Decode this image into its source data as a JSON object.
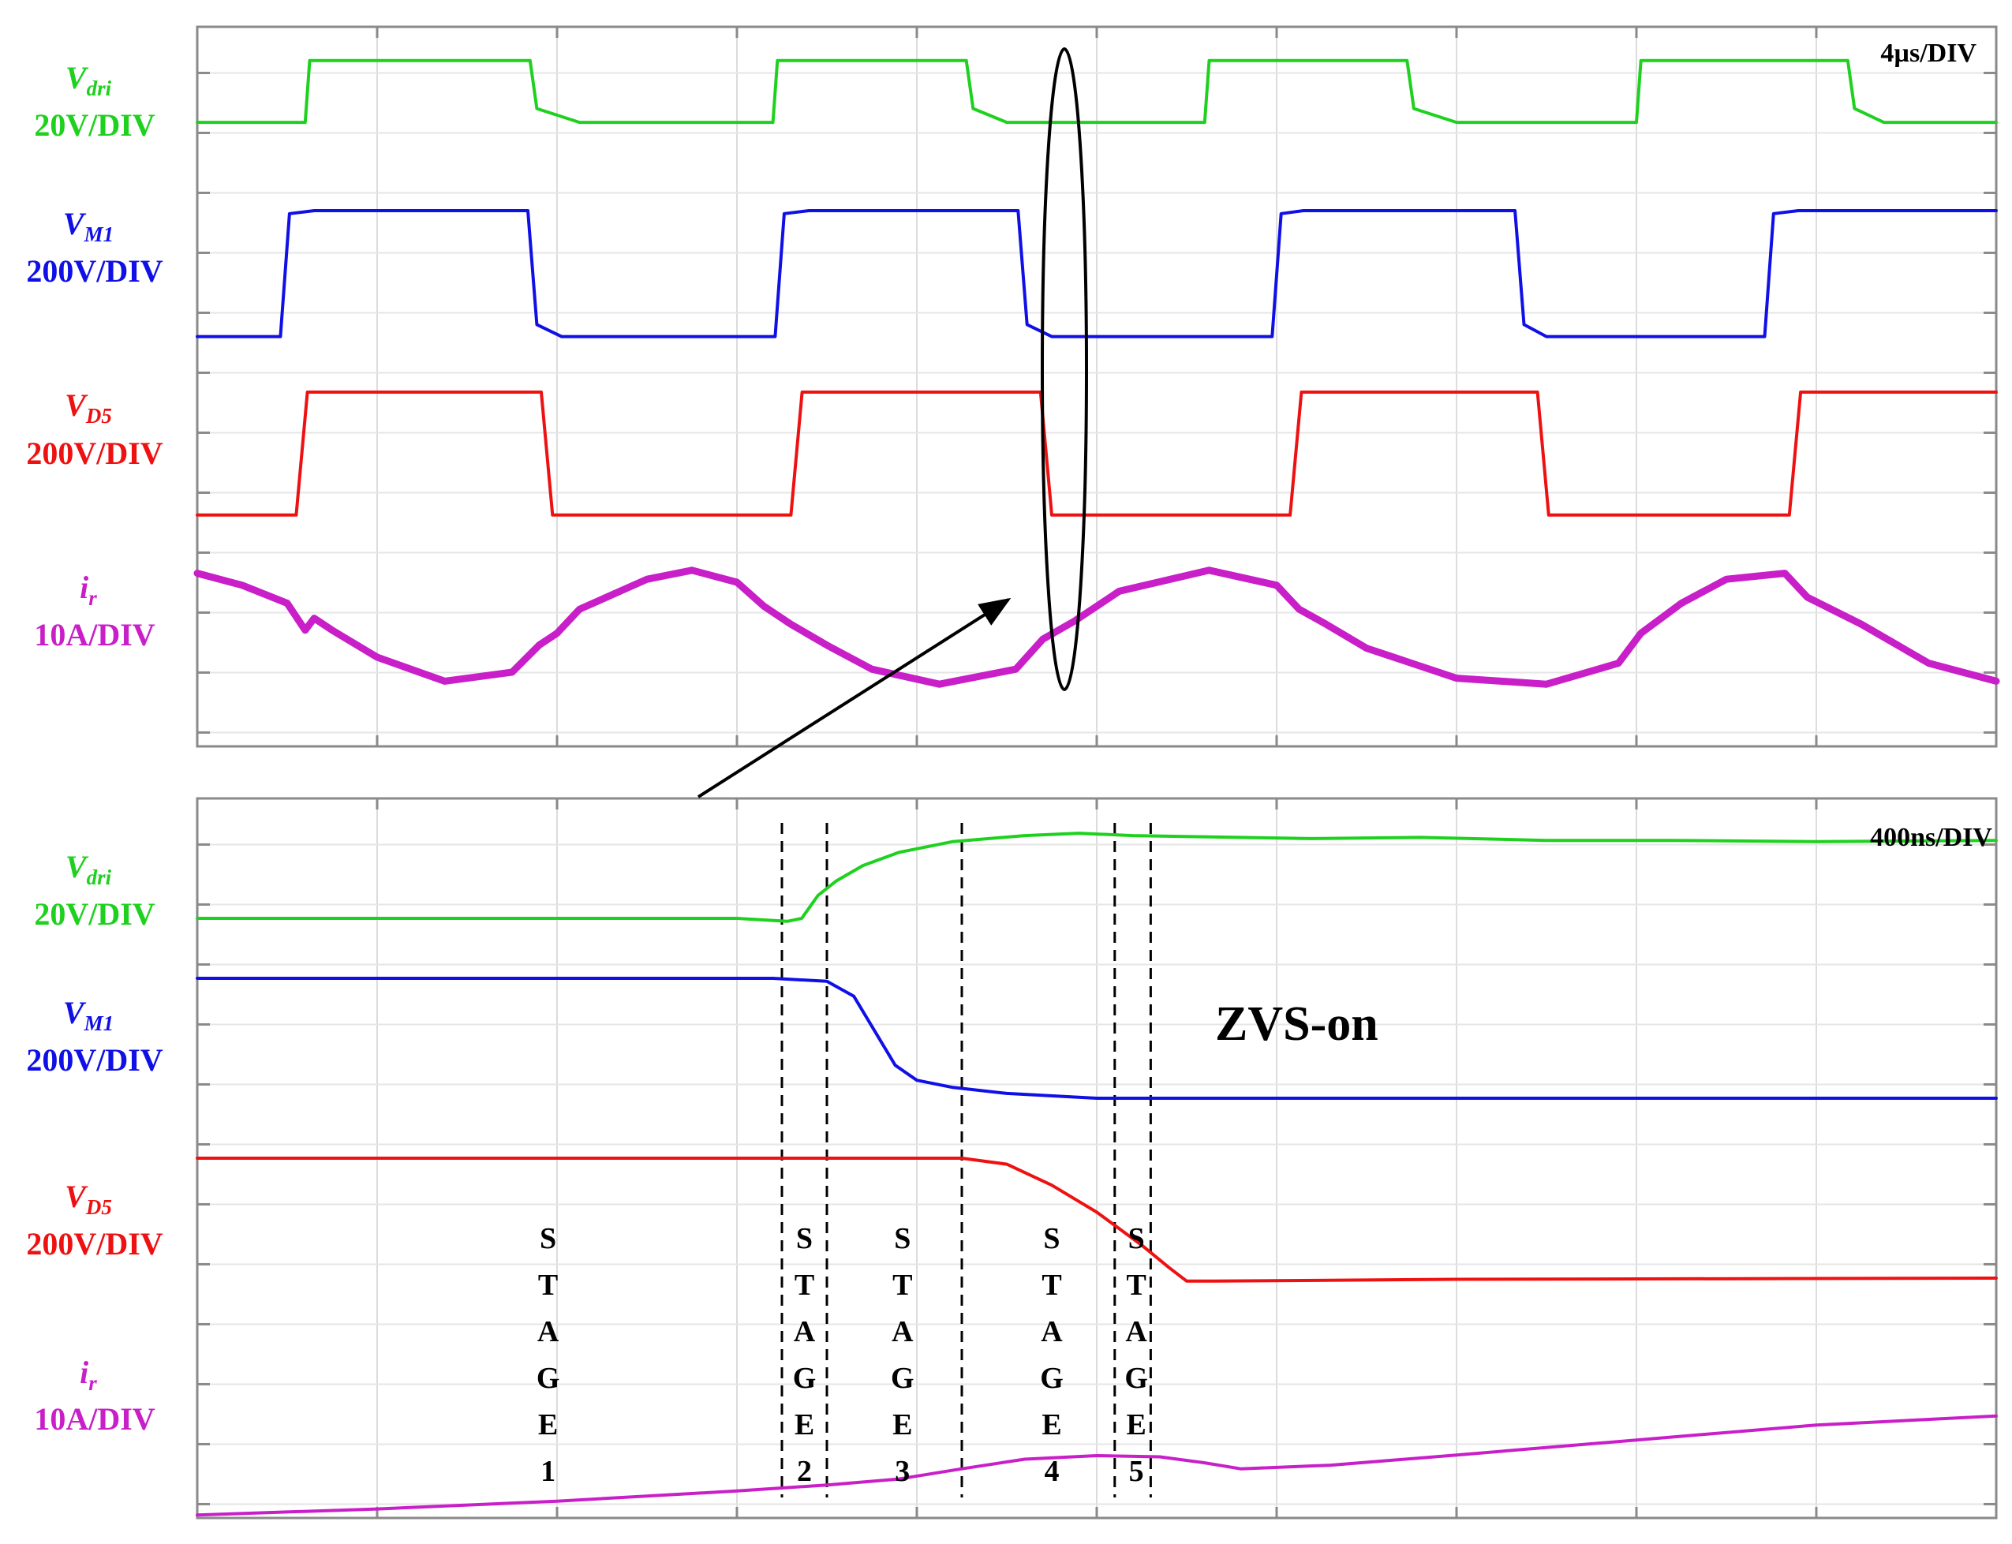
{
  "chart_data": [
    {
      "type": "line",
      "title": "",
      "time_scale": "4µs/DIV",
      "x_divisions": 10,
      "x_unit": "µs",
      "series": [
        {
          "name_main": "V",
          "name_sub": "dri",
          "scale": "20V/DIV",
          "color": "#1fd11f",
          "x": [
            0,
            2.4,
            2.5,
            7.4,
            7.55,
            8.5,
            12.8,
            12.9,
            17.1,
            17.25,
            18.0,
            22.4,
            22.5,
            26.9,
            27.05,
            28.0,
            32.0,
            32.1,
            36.7,
            36.85,
            37.5,
            40
          ],
          "y": [
            0.42,
            0.42,
            1.45,
            1.45,
            0.65,
            0.42,
            0.42,
            1.45,
            1.45,
            0.65,
            0.42,
            0.42,
            1.45,
            1.45,
            0.65,
            0.42,
            0.42,
            1.45,
            1.45,
            0.65,
            0.42,
            0.42
          ]
        },
        {
          "name_main": "V",
          "name_sub": "M1",
          "scale": "200V/DIV",
          "color": "#1010e6",
          "x": [
            0,
            1.85,
            2.05,
            2.6,
            7.35,
            7.55,
            8.1,
            12.85,
            13.05,
            13.6,
            18.25,
            18.45,
            19.0,
            23.9,
            24.1,
            24.6,
            29.3,
            29.5,
            30.0,
            34.85,
            35.05,
            35.6,
            40
          ],
          "y": [
            -0.1,
            -0.1,
            1.95,
            2.0,
            2.0,
            0.1,
            -0.1,
            -0.1,
            1.95,
            2.0,
            2.0,
            0.1,
            -0.1,
            -0.1,
            1.95,
            2.0,
            2.0,
            0.1,
            -0.1,
            -0.1,
            1.95,
            2.0,
            2.0
          ]
        },
        {
          "name_main": "V",
          "name_sub": "D5",
          "scale": "200V/DIV",
          "color": "#ee1111",
          "x": [
            0,
            2.2,
            2.45,
            7.65,
            7.9,
            13.2,
            13.45,
            18.75,
            19.0,
            24.3,
            24.55,
            29.8,
            30.05,
            35.4,
            35.65,
            40
          ],
          "y": [
            -0.05,
            -0.05,
            2.0,
            2.0,
            -0.05,
            -0.05,
            2.0,
            2.0,
            -0.05,
            -0.05,
            2.0,
            2.0,
            -0.05,
            -0.05,
            2.0,
            2.0
          ]
        },
        {
          "name_main": "i",
          "name_sub": "r",
          "scale": "10A/DIV",
          "color": "#c81fc8",
          "x": [
            0,
            1,
            2,
            2.4,
            2.6,
            3,
            4,
            5.5,
            7,
            7.6,
            8,
            8.5,
            10,
            11,
            12,
            12.6,
            13.2,
            14,
            15,
            16.5,
            18.2,
            18.8,
            19.5,
            20.5,
            22.5,
            24,
            24.5,
            25.1,
            26,
            28,
            30,
            31.6,
            32.1,
            33,
            34,
            35.3,
            35.8,
            37,
            38.5,
            40
          ],
          "y": [
            0.9,
            0.7,
            0.4,
            -0.05,
            0.15,
            -0.05,
            -0.5,
            -0.9,
            -0.75,
            -0.3,
            -0.1,
            0.3,
            0.8,
            0.95,
            0.75,
            0.35,
            0.05,
            -0.3,
            -0.7,
            -0.95,
            -0.7,
            -0.2,
            0.1,
            0.6,
            0.95,
            0.7,
            0.3,
            0.05,
            -0.35,
            -0.85,
            -0.95,
            -0.6,
            -0.1,
            0.4,
            0.8,
            0.9,
            0.5,
            0.05,
            -0.6,
            -0.9
          ]
        }
      ]
    },
    {
      "type": "line",
      "title": "",
      "time_scale": "400ns/DIV",
      "x_divisions": 10,
      "x_unit": "ns",
      "series": [
        {
          "name_main": "V",
          "name_sub": "dri",
          "scale": "20V/DIV",
          "color": "#1fd11f",
          "x": [
            0,
            3000,
            3280,
            3360,
            3450,
            3550,
            3700,
            3900,
            4200,
            4600,
            4900,
            5200,
            5600,
            6200,
            6800,
            7500,
            8200,
            9000,
            10000
          ],
          "y": [
            0.0,
            0.0,
            -0.05,
            0.0,
            0.38,
            0.62,
            0.88,
            1.1,
            1.28,
            1.38,
            1.42,
            1.38,
            1.36,
            1.33,
            1.35,
            1.3,
            1.3,
            1.28,
            1.3
          ]
        },
        {
          "name_main": "V",
          "name_sub": "M1",
          "scale": "200V/DIV",
          "color": "#1010e6",
          "x": [
            0,
            3200,
            3500,
            3650,
            3750,
            3880,
            4000,
            4200,
            4500,
            5000,
            6500,
            10000
          ],
          "y": [
            2.0,
            2.0,
            1.95,
            1.7,
            1.2,
            0.55,
            0.3,
            0.18,
            0.08,
            0.0,
            0.0,
            0.0
          ]
        },
        {
          "name_main": "V",
          "name_sub": "D5",
          "scale": "200V/DIV",
          "color": "#ee1111",
          "x": [
            0,
            4250,
            4500,
            4750,
            5000,
            5250,
            5400,
            5500,
            5650,
            7000,
            10000
          ],
          "y": [
            2.0,
            2.0,
            1.9,
            1.55,
            1.1,
            0.55,
            0.18,
            -0.05,
            -0.05,
            -0.02,
            0.0
          ]
        },
        {
          "name_main": "i",
          "name_sub": "r",
          "scale": "10A/DIV",
          "color": "#c81fc8",
          "x": [
            0,
            1000,
            2000,
            3000,
            3500,
            3900,
            4250,
            4600,
            5000,
            5350,
            5600,
            5800,
            6300,
            7000,
            8000,
            9000,
            10000
          ],
          "y": [
            -0.95,
            -0.85,
            -0.72,
            -0.55,
            -0.45,
            -0.35,
            -0.18,
            -0.02,
            0.04,
            0.02,
            -0.08,
            -0.18,
            -0.12,
            0.05,
            0.3,
            0.55,
            0.7
          ]
        }
      ],
      "stage_boundaries_ns": [
        3250,
        3500,
        4250,
        5100,
        5300
      ],
      "stages": [
        {
          "letters": [
            "S",
            "T",
            "A",
            "G",
            "E",
            "1"
          ],
          "x_ns": 1950
        },
        {
          "letters": [
            "S",
            "T",
            "A",
            "G",
            "E",
            "2"
          ],
          "x_ns": 3375
        },
        {
          "letters": [
            "S",
            "T",
            "A",
            "G",
            "E",
            "3"
          ],
          "x_ns": 3920
        },
        {
          "letters": [
            "S",
            "T",
            "A",
            "G",
            "E",
            "4"
          ],
          "x_ns": 4750
        },
        {
          "letters": [
            "S",
            "T",
            "A",
            "G",
            "E",
            "5"
          ],
          "x_ns": 5220
        }
      ],
      "annotation": "ZVS-on"
    }
  ]
}
